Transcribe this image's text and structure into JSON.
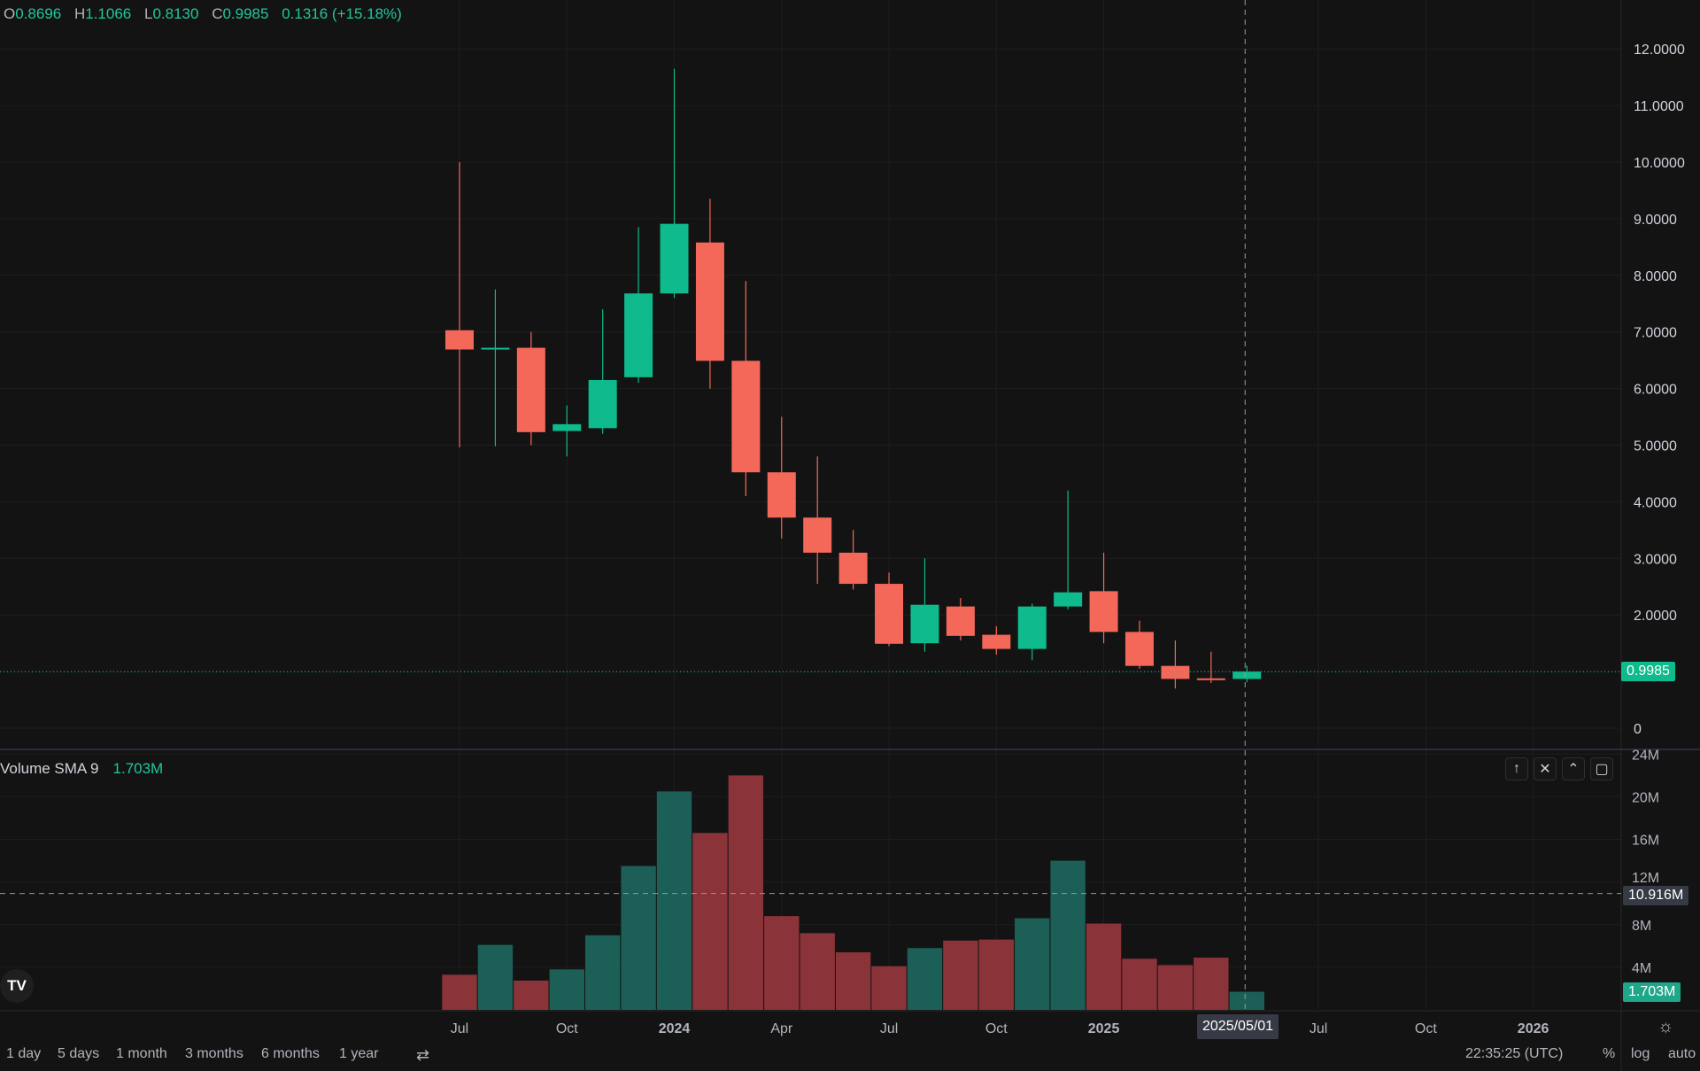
{
  "legend": {
    "o_label": "O",
    "o": "0.8696",
    "h_label": "H",
    "h": "1.1066",
    "l_label": "L",
    "l": "0.8130",
    "c_label": "C",
    "c": "0.9985",
    "change": "0.1316 (+15.18%)"
  },
  "volume_legend": {
    "label": "Volume SMA 9",
    "value": "1.703M"
  },
  "pane_buttons": [
    {
      "icon": "arrow-up-icon",
      "glyph": "↑"
    },
    {
      "icon": "close-icon",
      "glyph": "✕"
    },
    {
      "icon": "collapse-icon",
      "glyph": "⌃"
    },
    {
      "icon": "maximize-icon",
      "glyph": "▢"
    }
  ],
  "tags": {
    "last_price": "0.9985",
    "crosshair_volume": "10.916M",
    "last_volume": "1.703M",
    "crosshair_date": "2025/05/01"
  },
  "bottom_toolbar": {
    "ranges": [
      "1 day",
      "5 days",
      "1 month",
      "3 months",
      "6 months",
      "1 year"
    ],
    "clock": "22:35:25 (UTC)",
    "percent": "%",
    "log": "log",
    "auto": "auto"
  },
  "colors": {
    "up": "#0fba8c",
    "down": "#f4685a",
    "vol_up": "#1c5f56",
    "vol_down": "#8a3339",
    "background": "#131313",
    "grid": "#1e1e1e"
  },
  "chart_data": {
    "type": "candlestick",
    "interval": "monthly",
    "price_axis": {
      "ticks": [
        "12.0000",
        "11.0000",
        "10.0000",
        "9.0000",
        "8.0000",
        "7.0000",
        "6.0000",
        "5.0000",
        "4.0000",
        "3.0000",
        "2.0000",
        "0"
      ],
      "range": [
        0,
        12
      ]
    },
    "volume_axis": {
      "ticks": [
        "24M",
        "20M",
        "16M",
        "12M",
        "8M",
        "4M"
      ],
      "range": [
        0,
        24
      ]
    },
    "time_axis": {
      "ticks": [
        {
          "label": "Jul",
          "month": 0,
          "bold": false
        },
        {
          "label": "Oct",
          "month": 3,
          "bold": false
        },
        {
          "label": "2024",
          "month": 6,
          "bold": true
        },
        {
          "label": "Apr",
          "month": 9,
          "bold": false
        },
        {
          "label": "Jul",
          "month": 12,
          "bold": false
        },
        {
          "label": "Oct",
          "month": 15,
          "bold": false
        },
        {
          "label": "2025",
          "month": 18,
          "bold": true
        },
        {
          "label": "Jul",
          "month": 24,
          "bold": false
        },
        {
          "label": "Oct",
          "month": 27,
          "bold": false
        },
        {
          "label": "2026",
          "month": 30,
          "bold": true
        }
      ]
    },
    "candles": [
      {
        "date": "2023-07",
        "o": 7.03,
        "h": 10.0,
        "l": 4.96,
        "c": 6.69,
        "v": 3.3
      },
      {
        "date": "2023-08",
        "o": 6.69,
        "h": 7.75,
        "l": 4.98,
        "c": 6.72,
        "v": 6.1
      },
      {
        "date": "2023-09",
        "o": 6.72,
        "h": 7.0,
        "l": 5.0,
        "c": 5.23,
        "v": 2.75
      },
      {
        "date": "2023-10",
        "o": 5.25,
        "h": 5.7,
        "l": 4.8,
        "c": 5.37,
        "v": 3.8
      },
      {
        "date": "2023-11",
        "o": 5.3,
        "h": 7.4,
        "l": 5.2,
        "c": 6.15,
        "v": 7.0
      },
      {
        "date": "2023-12",
        "o": 6.2,
        "h": 8.85,
        "l": 6.1,
        "c": 7.68,
        "v": 13.5
      },
      {
        "date": "2024-01",
        "o": 7.68,
        "h": 11.65,
        "l": 7.6,
        "c": 8.91,
        "v": 20.5
      },
      {
        "date": "2024-02",
        "o": 8.58,
        "h": 9.35,
        "l": 6.0,
        "c": 6.49,
        "v": 16.6
      },
      {
        "date": "2024-03",
        "o": 6.49,
        "h": 7.9,
        "l": 4.1,
        "c": 4.52,
        "v": 22.0
      },
      {
        "date": "2024-04",
        "o": 4.52,
        "h": 5.5,
        "l": 3.35,
        "c": 3.72,
        "v": 8.8
      },
      {
        "date": "2024-05",
        "o": 3.72,
        "h": 4.8,
        "l": 2.55,
        "c": 3.1,
        "v": 7.2
      },
      {
        "date": "2024-06",
        "o": 3.1,
        "h": 3.5,
        "l": 2.45,
        "c": 2.55,
        "v": 5.4
      },
      {
        "date": "2024-07",
        "o": 2.55,
        "h": 2.75,
        "l": 1.45,
        "c": 1.49,
        "v": 4.1
      },
      {
        "date": "2024-08",
        "o": 1.5,
        "h": 3.0,
        "l": 1.35,
        "c": 2.18,
        "v": 5.8
      },
      {
        "date": "2024-09",
        "o": 2.15,
        "h": 2.3,
        "l": 1.55,
        "c": 1.63,
        "v": 6.5
      },
      {
        "date": "2024-10",
        "o": 1.65,
        "h": 1.8,
        "l": 1.3,
        "c": 1.4,
        "v": 6.6
      },
      {
        "date": "2024-11",
        "o": 1.4,
        "h": 2.2,
        "l": 1.2,
        "c": 2.15,
        "v": 8.6
      },
      {
        "date": "2024-12",
        "o": 2.15,
        "h": 4.2,
        "l": 2.1,
        "c": 2.4,
        "v": 14.0
      },
      {
        "date": "2025-01",
        "o": 2.42,
        "h": 3.1,
        "l": 1.5,
        "c": 1.7,
        "v": 8.1
      },
      {
        "date": "2025-02",
        "o": 1.7,
        "h": 1.9,
        "l": 1.05,
        "c": 1.1,
        "v": 4.8
      },
      {
        "date": "2025-03",
        "o": 1.1,
        "h": 1.55,
        "l": 0.7,
        "c": 0.87,
        "v": 4.2
      },
      {
        "date": "2025-04",
        "o": 0.88,
        "h": 1.35,
        "l": 0.8,
        "c": 0.87,
        "v": 4.9
      },
      {
        "date": "2025-05",
        "o": 0.8696,
        "h": 1.1066,
        "l": 0.813,
        "c": 0.9985,
        "v": 1.703
      }
    ],
    "last_price": 0.9985,
    "crosshair": {
      "date": "2025/05/01",
      "volume": 10.916
    },
    "grid": true
  }
}
